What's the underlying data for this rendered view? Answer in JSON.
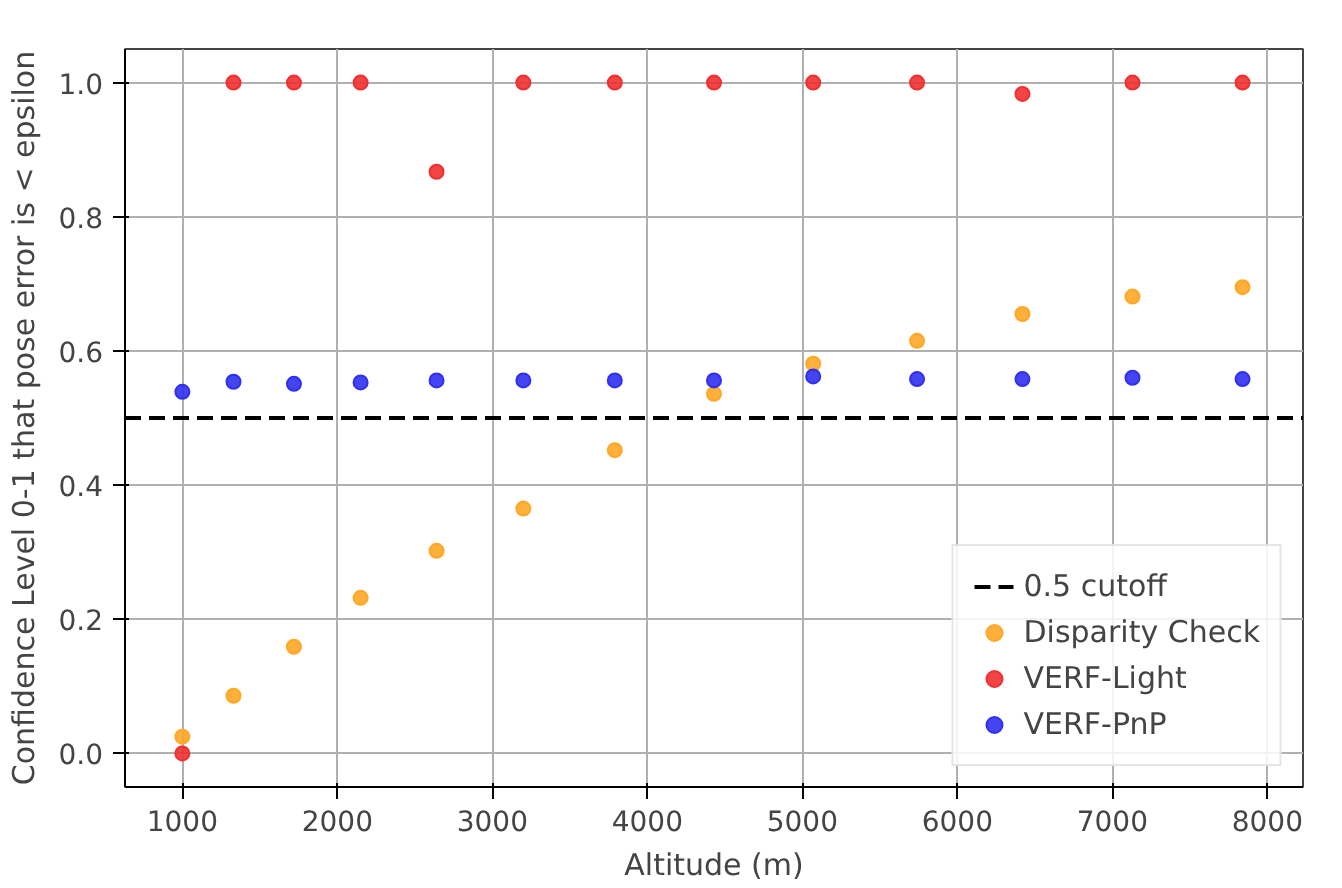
{
  "chart_data": {
    "type": "scatter",
    "xlabel": "Altitude (m)",
    "ylabel": "Confidence Level 0-1 that pose error is < epsilon",
    "x": [
      1000,
      1330,
      1720,
      2150,
      2640,
      3200,
      3790,
      4430,
      5070,
      5740,
      6420,
      7130,
      7840
    ],
    "series": [
      {
        "name": "Disparity Check",
        "color": "#ffa726",
        "values": [
          0.025,
          0.086,
          0.159,
          0.232,
          0.302,
          0.365,
          0.452,
          0.536,
          0.581,
          0.615,
          0.655,
          0.681,
          0.695
        ]
      },
      {
        "name": "VERF-Light",
        "color": "#f03030",
        "values": [
          0,
          1.0,
          1.0,
          1.0,
          0.867,
          1.0,
          1.0,
          1.0,
          1.0,
          1.0,
          0.983,
          1.0,
          1.0
        ]
      },
      {
        "name": "VERF-PnP",
        "color": "#3030f0",
        "values": [
          0.539,
          0.554,
          0.551,
          0.553,
          0.556,
          0.556,
          0.556,
          0.556,
          0.562,
          0.558,
          0.558,
          0.56,
          0.558
        ]
      }
    ],
    "ref_lines": [
      {
        "axis": "y",
        "value": 0.5,
        "label": "0.5 cutoff",
        "color": "#000000",
        "line_style": "dashed"
      }
    ],
    "xlim": [
      630,
      8230
    ],
    "ylim": [
      -0.05,
      1.05
    ],
    "xticks": [
      1000,
      2000,
      3000,
      4000,
      5000,
      6000,
      7000,
      8000
    ],
    "yticks": [
      {
        "value": 0,
        "label": "0.0"
      },
      {
        "value": 0.2,
        "label": "0.2"
      },
      {
        "value": 0.4,
        "label": "0.4"
      },
      {
        "value": 0.6,
        "label": "0.6"
      },
      {
        "value": 0.8,
        "label": "0.8"
      },
      {
        "value": 1,
        "label": "1.0"
      }
    ],
    "grid": true,
    "legend": "bottom right",
    "marker": "circle"
  }
}
